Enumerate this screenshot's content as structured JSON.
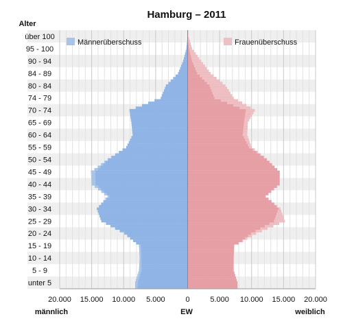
{
  "chart_data": {
    "type": "bar",
    "orientation": "horizontal",
    "layout": "population-pyramid",
    "title": "Hamburg – 2011",
    "ylabel": "Alter",
    "xlabel": "EW",
    "left_axis_label": "männlich",
    "right_axis_label": "weiblich",
    "xlim": [
      -20000,
      20000
    ],
    "xticks": [
      -20000,
      -15000,
      -10000,
      -5000,
      0,
      5000,
      10000,
      15000,
      20000
    ],
    "xtick_labels": [
      "20.000",
      "15.000",
      "10.000",
      "5.000",
      "0",
      "5.000",
      "10.000",
      "15.000",
      "20.000"
    ],
    "age_groups": [
      "unter 5",
      "5 - 9",
      "10 - 14",
      "15 - 19",
      "20 - 24",
      "25 - 29",
      "30 - 34",
      "35 - 39",
      "40 - 44",
      "45 - 49",
      "50 - 54",
      "55 - 59",
      "60 - 64",
      "65 - 69",
      "70 - 74",
      "74 - 79",
      "80 - 84",
      "84 - 89",
      "90 - 94",
      "95 - 100",
      "über 100"
    ],
    "grid": true,
    "legend": [
      {
        "name": "Männerüberschuss",
        "color": "#a9c4ea",
        "position": "top-left"
      },
      {
        "name": "Frauenüberschuss",
        "color": "#eebfc3",
        "position": "top-right"
      }
    ],
    "colors": {
      "male": "#8fb4e5",
      "female": "#e6a0a5",
      "male_surplus": "#a9c4ea",
      "female_surplus": "#eebfc3"
    },
    "series": [
      {
        "name": "männlich",
        "values": [
          8200,
          7600,
          7500,
          7600,
          9900,
          13500,
          14200,
          12500,
          15000,
          15100,
          12500,
          9600,
          8600,
          8800,
          9100,
          4200,
          3400,
          1500,
          700,
          200,
          0
        ]
      },
      {
        "name": "weiblich",
        "values": [
          7800,
          7200,
          7200,
          7300,
          10700,
          15200,
          14500,
          12200,
          14400,
          14400,
          12400,
          10000,
          9300,
          9400,
          10500,
          7200,
          5900,
          3600,
          2100,
          700,
          100
        ]
      }
    ]
  }
}
